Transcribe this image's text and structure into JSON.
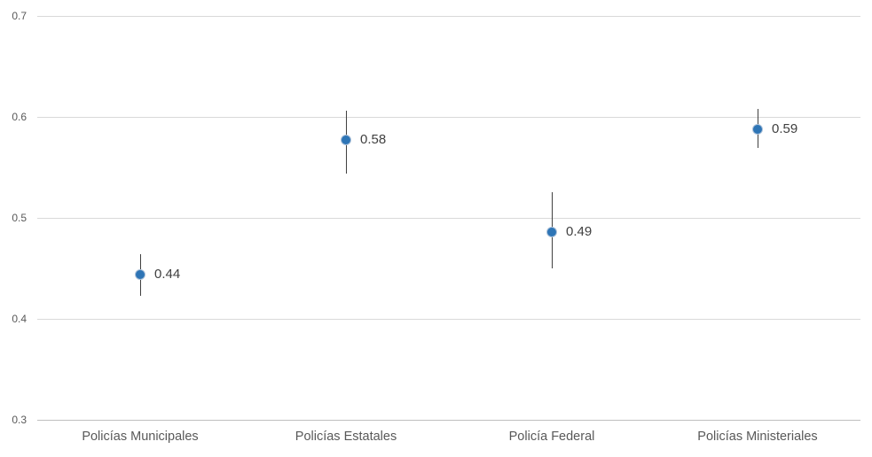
{
  "chart_data": {
    "type": "scatter",
    "variant": "dot-plot-with-error-bars",
    "title": "",
    "xlabel": "",
    "ylabel": "",
    "grid": true,
    "legend": false,
    "categories": [
      "Policías Municipales",
      "Policías Estatales",
      "Policía Federal",
      "Policías Ministeriales"
    ],
    "series": [
      {
        "name": "point-estimates",
        "points": [
          {
            "category": "Policías Municipales",
            "value": 0.444,
            "label": "0.44",
            "ci_low": 0.423,
            "ci_high": 0.464
          },
          {
            "category": "Policías Estatales",
            "value": 0.577,
            "label": "0.58",
            "ci_low": 0.544,
            "ci_high": 0.606
          },
          {
            "category": "Policía Federal",
            "value": 0.486,
            "label": "0.49",
            "ci_low": 0.45,
            "ci_high": 0.525
          },
          {
            "category": "Policías Ministeriales",
            "value": 0.588,
            "label": "0.59",
            "ci_low": 0.569,
            "ci_high": 0.608
          }
        ]
      }
    ],
    "y_axis": {
      "min": 0.3,
      "max": 0.7,
      "ticks": [
        {
          "label": "0.7",
          "value": 0.7
        },
        {
          "label": "0.6",
          "value": 0.6
        },
        {
          "label": "0.5",
          "value": 0.5
        },
        {
          "label": "0.4",
          "value": 0.4
        },
        {
          "label": "0.3",
          "value": 0.3
        }
      ]
    },
    "x_axis": {
      "labels": [
        "Policías Municipales",
        "Policías Estatales",
        "Policía Federal",
        "Policías Ministeriales"
      ]
    },
    "colors": {
      "background": "#FFFFFF",
      "marker_fill": "#2E75B6",
      "marker_border": "#AFC3DA",
      "error_bar": "#404040",
      "gridline": "#D9D9D9",
      "axis_line": "#BFBFBF",
      "data_label_text": "#404040",
      "tick_text": "#595959",
      "category_text": "#595959"
    }
  }
}
